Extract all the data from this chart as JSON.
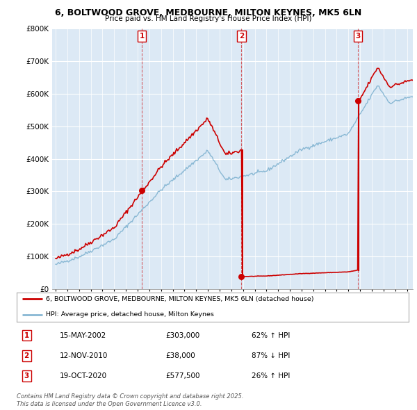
{
  "title": "6, BOLTWOOD GROVE, MEDBOURNE, MILTON KEYNES, MK5 6LN",
  "subtitle": "Price paid vs. HM Land Registry's House Price Index (HPI)",
  "sale_annotations": [
    {
      "num": "1",
      "date": "15-MAY-2002",
      "price": "£303,000",
      "pct": "62% ↑ HPI"
    },
    {
      "num": "2",
      "date": "12-NOV-2010",
      "price": "£38,000",
      "pct": "87% ↓ HPI"
    },
    {
      "num": "3",
      "date": "19-OCT-2020",
      "price": "£577,500",
      "pct": "26% ↑ HPI"
    }
  ],
  "legend_property": "6, BOLTWOOD GROVE, MEDBOURNE, MILTON KEYNES, MK5 6LN (detached house)",
  "legend_hpi": "HPI: Average price, detached house, Milton Keynes",
  "footer": "Contains HM Land Registry data © Crown copyright and database right 2025.\nThis data is licensed under the Open Government Licence v3.0.",
  "property_color": "#cc0000",
  "hpi_color": "#89b8d4",
  "ylim": [
    0,
    800000
  ],
  "yticks": [
    0,
    100000,
    200000,
    300000,
    400000,
    500000,
    600000,
    700000,
    800000
  ],
  "xlim_start": 1994.7,
  "xlim_end": 2025.5,
  "plot_bg": "#dce9f5",
  "sale_dates": [
    2002.37,
    2010.87,
    2020.8
  ],
  "sale_prices": [
    303000,
    38000,
    577500
  ]
}
